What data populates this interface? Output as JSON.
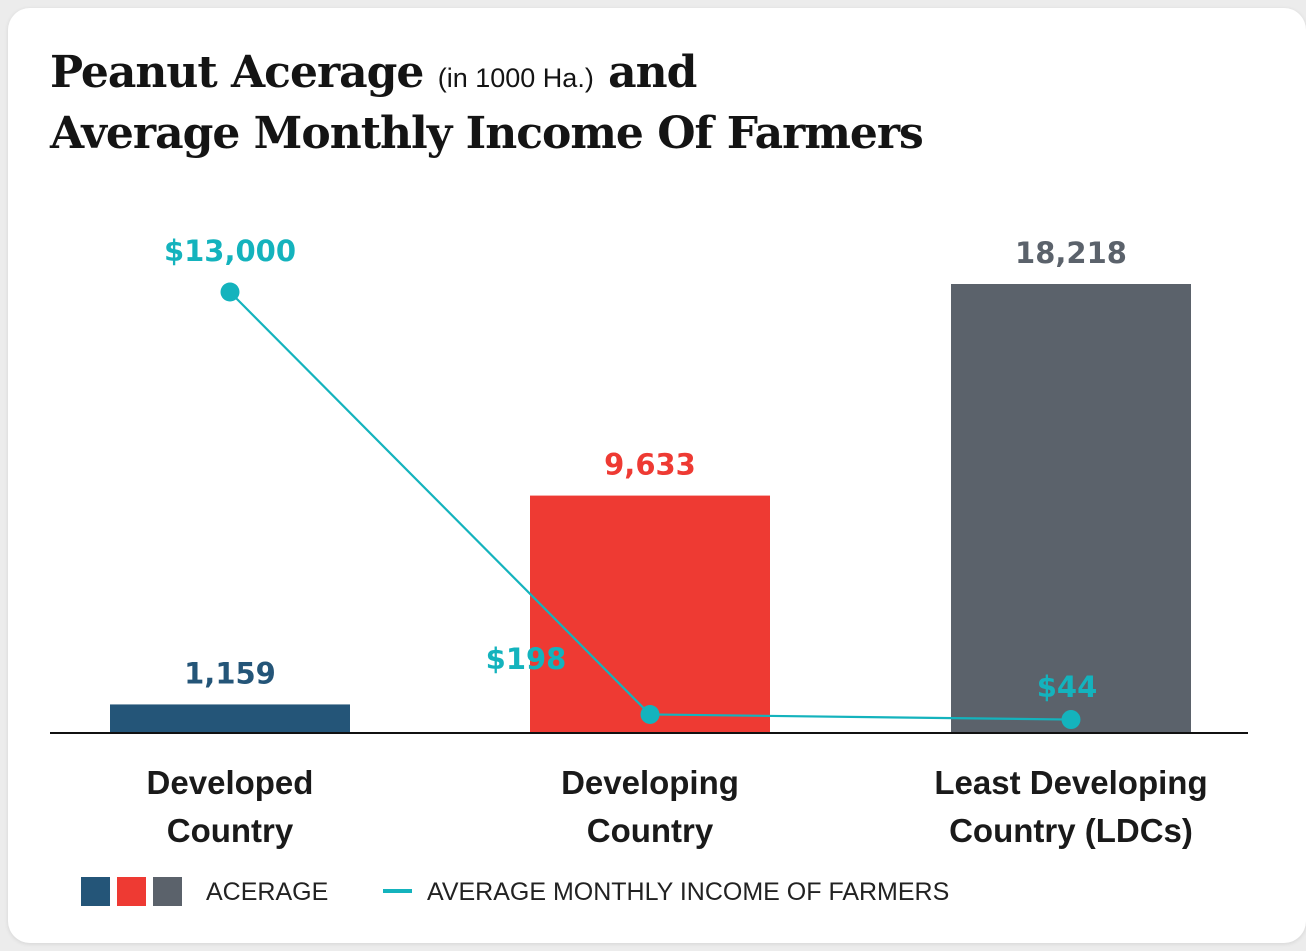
{
  "title": {
    "line1_main": "Peanut Acerage",
    "line1_unit": "(in 1000 Ha.)",
    "line1_tail": "and",
    "line2": "Average Monthly Income Of Farmers"
  },
  "chart_data": {
    "type": "bar",
    "categories": [
      [
        "Developed",
        "Country"
      ],
      [
        "Developing",
        "Country"
      ],
      [
        "Least Developing",
        "Country (LDCs)"
      ]
    ],
    "series": [
      {
        "type": "bar",
        "values": [
          1159,
          9633,
          18218
        ],
        "labels": [
          "1,159",
          "9,633",
          "18,218"
        ],
        "colors": [
          "#245578",
          "#ee3a33",
          "#5b626b"
        ]
      },
      {
        "type": "line",
        "values": [
          13000,
          198,
          44
        ],
        "labels": [
          "$13,000",
          "$198",
          "$44"
        ],
        "color": "#14b3bd"
      }
    ],
    "legend": [
      {
        "label": "ACERAGE",
        "colors": [
          "#245578",
          "#ee3a33",
          "#5b626b"
        ]
      },
      {
        "label": "AVERAGE MONTHLY INCOME OF FARMERS",
        "color": "#14b3bd"
      }
    ],
    "legend_position": "bottom-left",
    "grid": false
  }
}
